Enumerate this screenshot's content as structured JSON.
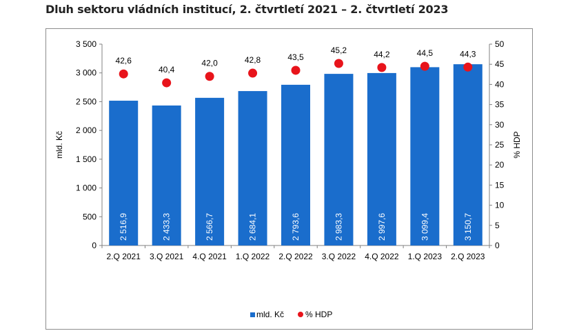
{
  "title": "Dluh sektoru vládních institucí, 2. čtvrtletí 2021 – 2. čtvrtletí 2023",
  "chart_data": {
    "type": "bar",
    "categories": [
      "2.Q 2021",
      "3.Q 2021",
      "4.Q 2021",
      "1.Q 2022",
      "2.Q 2022",
      "3.Q 2022",
      "4.Q 2022",
      "1.Q 2023",
      "2.Q 2023"
    ],
    "series": [
      {
        "name": "mld. Kč",
        "type": "bar",
        "axis": "left",
        "color": "#1a6dcc",
        "values": [
          2516.9,
          2433.3,
          2566.7,
          2684.1,
          2793.6,
          2983.3,
          2997.6,
          3099.4,
          3150.7
        ],
        "labels": [
          "2 516,9",
          "2 433,3",
          "2 566,7",
          "2 684,1",
          "2 793,6",
          "2 983,3",
          "2 997,6",
          "3 099,4",
          "3 150,7"
        ]
      },
      {
        "name": "% HDP",
        "type": "scatter",
        "axis": "right",
        "color": "#e8141b",
        "values": [
          42.6,
          40.4,
          42.0,
          42.8,
          43.5,
          45.2,
          44.2,
          44.5,
          44.3
        ],
        "labels": [
          "42,6",
          "40,4",
          "42,0",
          "42,8",
          "43,5",
          "45,2",
          "44,2",
          "44,5",
          "44,3"
        ]
      }
    ],
    "ylabel": "mld. Kč",
    "y2label": "% HDP",
    "ylim": [
      0,
      3500
    ],
    "y2lim": [
      0,
      50
    ],
    "yticks": [
      "0",
      "500",
      "1 000",
      "1 500",
      "2 000",
      "2 500",
      "3 000",
      "3 500"
    ],
    "y2ticks": [
      "0",
      "5",
      "10",
      "15",
      "20",
      "25",
      "30",
      "35",
      "40",
      "45",
      "50"
    ],
    "grid": false,
    "legend": "bottom-center"
  }
}
